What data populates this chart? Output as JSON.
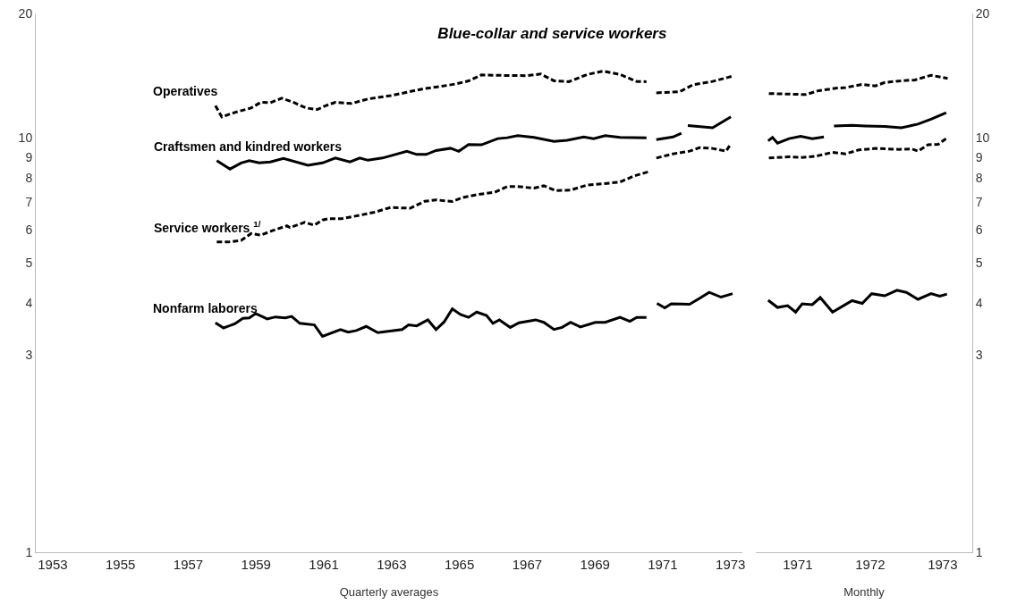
{
  "chart_data": [
    {
      "type": "line",
      "title": "Blue-collar and service workers",
      "xlabel": "Quarterly averages",
      "log": "y",
      "legend": false,
      "marker": "none",
      "xlim": [
        1952.5,
        1973.35
      ],
      "xticks": [
        1953,
        1955,
        1957,
        1959,
        1961,
        1963,
        1965,
        1967,
        1969,
        1971,
        1973
      ],
      "ylim": [
        1,
        20
      ],
      "yticks": [
        1,
        3,
        4,
        5,
        6,
        7,
        8,
        9,
        10,
        20
      ],
      "series": [
        {
          "name": "Operatives",
          "color": "#000000",
          "line_style": "dashed",
          "x": [
            1957.8,
            1957.99,
            1958.37,
            1958.85,
            1959.14,
            1959.42,
            1959.76,
            1960.1,
            1960.48,
            1960.81,
            1961.05,
            1961.34,
            1961.82,
            1962.3,
            1962.97,
            1963.45,
            1963.93,
            1964.41,
            1964.89,
            1965.27,
            1965.65,
            1966.23,
            1967.01,
            1967.4,
            1967.79,
            1968.23,
            1968.77,
            1969.25,
            1969.74,
            1970.23,
            1970.52,
            1970.66,
            1970.81,
            1971.5,
            1971.89,
            1972.47,
            1973.06
          ],
          "values": [
            11.97,
            11.25,
            11.53,
            11.82,
            12.2,
            12.17,
            12.48,
            12.2,
            11.82,
            11.72,
            11.97,
            12.2,
            12.12,
            12.43,
            12.66,
            12.9,
            13.15,
            13.31,
            13.51,
            13.74,
            14.21,
            14.17,
            14.15,
            14.28,
            13.75,
            13.68,
            14.24,
            14.51,
            14.24,
            13.7,
            13.68,
            null,
            12.86,
            12.94,
            13.45,
            13.7,
            14.11
          ]
        },
        {
          "name": "Craftsmen and kindred workers",
          "color": "#000000",
          "line_style": "solid",
          "x": [
            1957.84,
            1958.23,
            1958.56,
            1958.8,
            1959.09,
            1959.42,
            1959.81,
            1960.53,
            1960.96,
            1961.34,
            1961.77,
            1962.06,
            1962.3,
            1962.73,
            1963.45,
            1963.74,
            1964.02,
            1964.31,
            1964.74,
            1964.98,
            1965.27,
            1965.65,
            1966.13,
            1966.41,
            1966.72,
            1967.2,
            1967.79,
            1968.18,
            1968.67,
            1968.96,
            1969.3,
            1969.74,
            1970.52,
            1970.66,
            1970.81,
            1971.3,
            1971.55,
            1971.65,
            1971.74,
            1972.47,
            1973.01
          ],
          "values": [
            8.82,
            8.42,
            8.71,
            8.82,
            8.71,
            8.76,
            8.93,
            8.6,
            8.71,
            8.95,
            8.76,
            8.95,
            8.84,
            8.95,
            9.29,
            9.13,
            9.13,
            9.33,
            9.45,
            9.29,
            9.65,
            9.63,
            9.97,
            10.02,
            10.14,
            10.04,
            9.82,
            9.88,
            10.06,
            9.97,
            10.14,
            10.04,
            10.01,
            null,
            9.91,
            10.06,
            10.27,
            null,
            10.72,
            10.59,
            11.25
          ]
        },
        {
          "name": "Service workers $^{1/}$",
          "color": "#000000",
          "line_style": "dashed",
          "x": [
            1957.84,
            1958.18,
            1958.56,
            1958.85,
            1959.14,
            1959.52,
            1959.91,
            1960.0,
            1960.43,
            1960.72,
            1960.96,
            1961.15,
            1961.53,
            1962.01,
            1962.49,
            1962.97,
            1963.55,
            1963.98,
            1964.31,
            1964.79,
            1965.08,
            1965.56,
            1966.04,
            1966.42,
            1966.72,
            1967.2,
            1967.49,
            1967.84,
            1968.28,
            1968.77,
            1969.25,
            1969.74,
            1970.13,
            1970.57,
            1970.69,
            1970.81,
            1971.3,
            1971.79,
            1972.08,
            1972.47,
            1972.87,
            1973.01
          ],
          "values": [
            5.61,
            5.61,
            5.66,
            5.88,
            5.83,
            5.99,
            6.14,
            6.08,
            6.26,
            6.16,
            6.34,
            6.39,
            6.39,
            6.5,
            6.62,
            6.8,
            6.77,
            7.04,
            7.09,
            7.03,
            7.18,
            7.31,
            7.4,
            7.64,
            7.64,
            7.57,
            7.67,
            7.47,
            7.49,
            7.7,
            7.76,
            7.83,
            8.09,
            8.29,
            null,
            8.95,
            9.16,
            9.3,
            9.48,
            9.44,
            9.3,
            9.69
          ]
        },
        {
          "name": "Nonfarm laborers",
          "color": "#000000",
          "line_style": "solid",
          "x": [
            1957.8,
            1958.04,
            1958.37,
            1958.61,
            1958.8,
            1958.99,
            1959.33,
            1959.57,
            1959.86,
            1960.05,
            1960.29,
            1960.72,
            1960.96,
            1961.49,
            1961.72,
            1961.96,
            1962.25,
            1962.59,
            1963.31,
            1963.5,
            1963.74,
            1964.07,
            1964.31,
            1964.55,
            1964.79,
            1965.03,
            1965.27,
            1965.51,
            1965.8,
            1965.99,
            1966.18,
            1966.5,
            1966.76,
            1967.25,
            1967.49,
            1967.79,
            1968.03,
            1968.28,
            1968.57,
            1969.01,
            1969.3,
            1969.74,
            1970.03,
            1970.23,
            1970.52,
            1970.68,
            1970.83,
            1971.06,
            1971.25,
            1971.79,
            1972.08,
            1972.37,
            1972.72,
            1973.06
          ],
          "values": [
            3.58,
            3.48,
            3.56,
            3.67,
            3.68,
            3.77,
            3.66,
            3.7,
            3.68,
            3.71,
            3.57,
            3.54,
            3.32,
            3.45,
            3.4,
            3.43,
            3.51,
            3.39,
            3.45,
            3.54,
            3.52,
            3.64,
            3.45,
            3.6,
            3.87,
            3.75,
            3.69,
            3.8,
            3.73,
            3.57,
            3.64,
            3.49,
            3.58,
            3.64,
            3.59,
            3.45,
            3.49,
            3.59,
            3.5,
            3.59,
            3.59,
            3.69,
            3.61,
            3.69,
            3.69,
            null,
            3.99,
            3.89,
            3.98,
            3.97,
            4.1,
            4.24,
            4.13,
            4.21
          ]
        }
      ]
    },
    {
      "type": "line",
      "xlabel": "Monthly",
      "log": "y",
      "legend": false,
      "marker": "none",
      "xlim": [
        1970.42,
        1973.41
      ],
      "xticks": [
        1971,
        1972,
        1973
      ],
      "ylim": [
        1,
        20
      ],
      "yticks": [
        1,
        3,
        4,
        5,
        6,
        7,
        8,
        9,
        10,
        20
      ],
      "series": [
        {
          "color": "#000000",
          "line_style": "dashed",
          "x": [
            1970.6,
            1970.83,
            1971.11,
            1971.29,
            1971.52,
            1971.66,
            1971.89,
            1972.07,
            1972.2,
            1972.43,
            1972.62,
            1972.84,
            1973.07
          ],
          "values": [
            12.81,
            12.78,
            12.74,
            13.02,
            13.19,
            13.24,
            13.48,
            13.36,
            13.62,
            13.75,
            13.82,
            14.18,
            13.93
          ]
        },
        {
          "color": "#000000",
          "line_style": "solid",
          "x": [
            1970.59,
            1970.65,
            1970.72,
            1970.88,
            1971.04,
            1971.2,
            1971.36,
            1971.43,
            1971.5,
            1971.75,
            1971.93,
            1972.2,
            1972.43,
            1972.66,
            1972.84,
            1973.05
          ],
          "values": [
            9.85,
            10.04,
            9.72,
            9.97,
            10.1,
            9.97,
            10.06,
            null,
            10.7,
            10.73,
            10.7,
            10.67,
            10.59,
            10.81,
            11.11,
            11.51
          ]
        },
        {
          "color": "#000000",
          "line_style": "dashed",
          "x": [
            1970.6,
            1970.88,
            1971.06,
            1971.25,
            1971.48,
            1971.66,
            1971.84,
            1972.07,
            1972.39,
            1972.57,
            1972.66,
            1972.8,
            1972.94,
            1973.05
          ],
          "values": [
            8.95,
            9.01,
            8.98,
            9.04,
            9.24,
            9.16,
            9.36,
            9.44,
            9.39,
            9.42,
            9.3,
            9.64,
            9.66,
            9.97
          ]
        },
        {
          "color": "#000000",
          "line_style": "solid",
          "x": [
            1970.59,
            1970.72,
            1970.86,
            1970.97,
            1971.06,
            1971.2,
            1971.31,
            1971.48,
            1971.75,
            1971.89,
            1972.02,
            1972.2,
            1972.37,
            1972.5,
            1972.66,
            1972.84,
            1972.96,
            1973.06
          ],
          "values": [
            4.06,
            3.9,
            3.94,
            3.8,
            3.98,
            3.96,
            4.12,
            3.8,
            4.05,
            3.99,
            4.21,
            4.16,
            4.29,
            4.24,
            4.08,
            4.21,
            4.15,
            4.2
          ]
        }
      ]
    }
  ]
}
